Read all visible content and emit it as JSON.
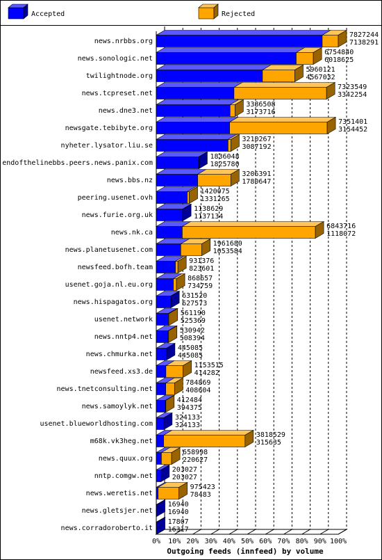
{
  "chart_data": {
    "type": "bar3d-stacked-horizontal",
    "title": "Outgoing feeds (innfeed) by volume",
    "categories": [
      "news.nrbbs.org",
      "news.sonologic.net",
      "twilightnode.org",
      "news.tcpreset.net",
      "news.dne3.net",
      "newsgate.tebibyte.org",
      "nyheter.lysator.liu.se",
      "endofthelinebbs.peers.news.panix.com",
      "news.bbs.nz",
      "peering.usenet.ovh",
      "news.furie.org.uk",
      "news.nk.ca",
      "news.planetusenet.com",
      "newsfeed.bofh.team",
      "usenet.goja.nl.eu.org",
      "news.hispagatos.org",
      "usenet.network",
      "news.nntp4.net",
      "news.chmurka.net",
      "newsfeed.xs3.de",
      "news.tnetconsulting.net",
      "news.samoylyk.net",
      "usenet.blueworldhosting.com",
      "m68k.vk3heg.net",
      "news.quux.org",
      "nntp.comgw.net",
      "news.weretis.net",
      "news.gletsjer.net",
      "news.corradoroberto.it"
    ],
    "offered": [
      7827244,
      6754840,
      5960121,
      7323549,
      3386508,
      7351401,
      3210267,
      1836048,
      3206391,
      1420075,
      1138629,
      6843716,
      1961680,
      931376,
      868657,
      631520,
      561190,
      530942,
      445085,
      1153515,
      784869,
      412484,
      324133,
      3818529,
      658998,
      203027,
      975423,
      16940,
      17807
    ],
    "series": [
      {
        "name": "Accepted",
        "color": "#0000ff",
        "values": [
          7138291,
          6018625,
          4567032,
          3342254,
          3173716,
          3154452,
          3087192,
          1825780,
          1780647,
          1331265,
          1137134,
          1118072,
          1053584,
          823601,
          734759,
          627573,
          525369,
          508394,
          445085,
          414282,
          408604,
          394375,
          324133,
          315635,
          220627,
          203027,
          78483,
          16940,
          16317
        ]
      },
      {
        "name": "Rejected",
        "color": "#ffa500"
      }
    ],
    "xlim": [
      0,
      7827244
    ],
    "xticks": [
      {
        "value": 0,
        "label": "0%"
      },
      {
        "value": 782724.4,
        "label": "10%"
      },
      {
        "value": 1565448.8,
        "label": "20%"
      },
      {
        "value": 2348173.2,
        "label": "30%"
      },
      {
        "value": 3130897.6,
        "label": "40%"
      },
      {
        "value": 3913622,
        "label": "50%"
      },
      {
        "value": 4696346.4,
        "label": "60%"
      },
      {
        "value": 5479070.8,
        "label": "70%"
      },
      {
        "value": 6261795.2,
        "label": "80%"
      },
      {
        "value": 7044519.6,
        "label": "90%"
      },
      {
        "value": 7827244,
        "label": "100%"
      }
    ],
    "grid": true
  }
}
